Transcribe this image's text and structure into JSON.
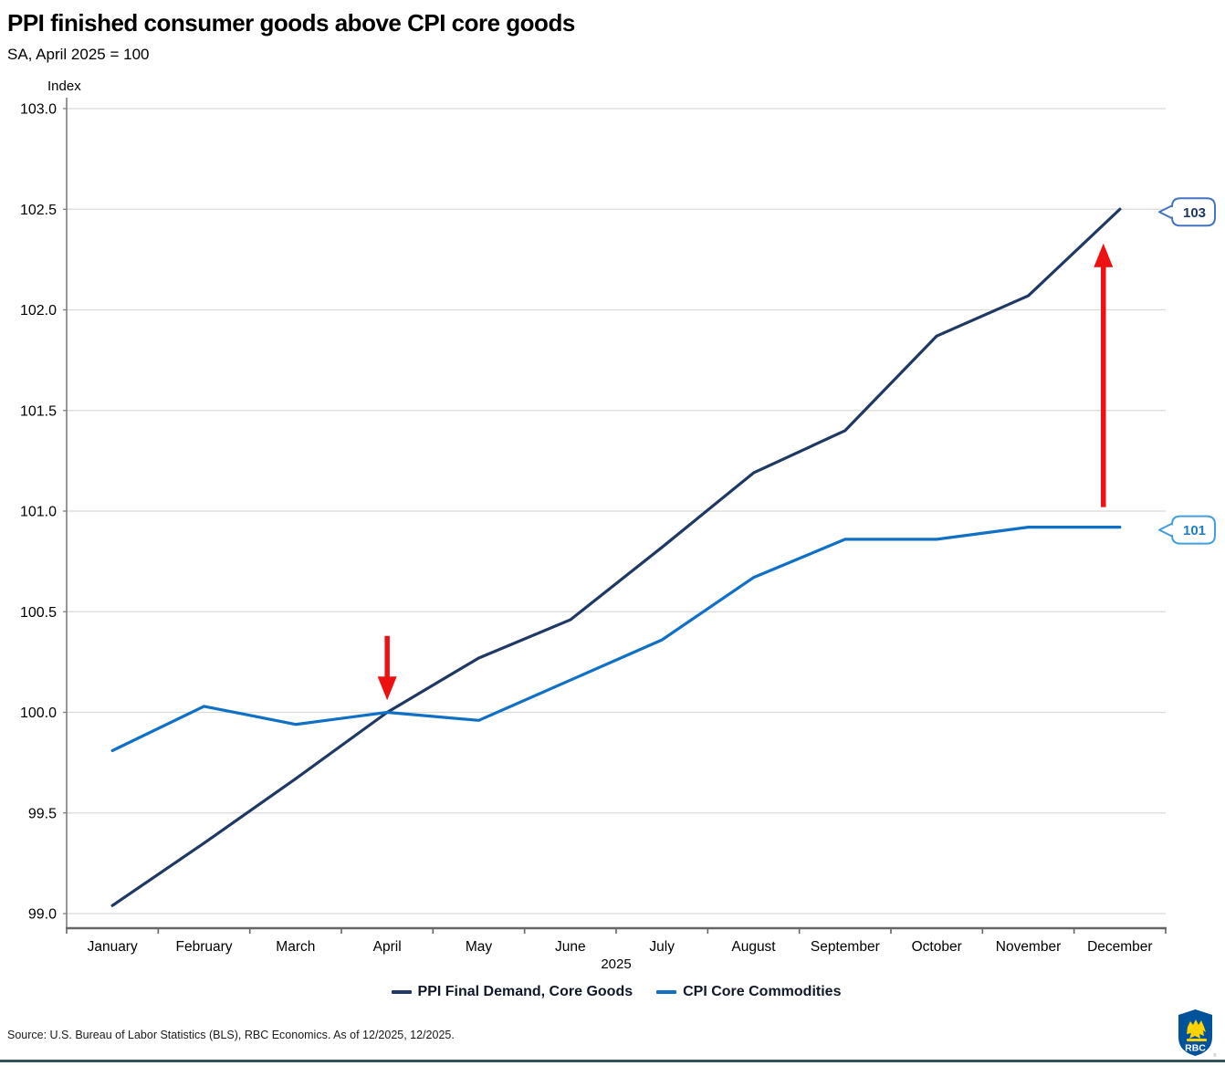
{
  "header": {
    "title": "PPI finished consumer goods above CPI core goods",
    "subtitle": "SA, April 2025 = 100"
  },
  "chart_data": {
    "type": "line",
    "title": "PPI finished consumer goods above CPI core goods",
    "subtitle": "SA, April 2025 = 100",
    "y_axis_title": "Index",
    "x_axis_title": "2025",
    "categories": [
      "January",
      "February",
      "March",
      "April",
      "May",
      "June",
      "July",
      "August",
      "September",
      "October",
      "November",
      "December"
    ],
    "series": [
      {
        "name": "PPI Final Demand, Core Goods",
        "color": "#1F3864",
        "values": [
          99.04,
          99.35,
          99.67,
          100.0,
          100.27,
          100.46,
          100.82,
          101.19,
          101.4,
          101.87,
          102.07,
          102.5
        ]
      },
      {
        "name": "CPI Core Commodities",
        "color": "#0F70C6",
        "values": [
          99.81,
          100.03,
          99.94,
          100.0,
          99.96,
          100.16,
          100.36,
          100.67,
          100.86,
          100.86,
          100.92,
          100.92
        ]
      }
    ],
    "ylim": [
      99.0,
      103.0
    ],
    "y_tick_step": 0.5,
    "y_tick_decimals": 1,
    "grid": "horizontal",
    "gridline_color": "#D9D9D9",
    "axis_color": "#7F7F7F",
    "legend_position": "bottom",
    "annotations": {
      "arrow_color": "#EE1111",
      "arrows": [
        {
          "name": "april-convergence-arrow",
          "direction": "down",
          "x_month_index": 3.0,
          "from_value": 100.38,
          "to_value": 100.06
        },
        {
          "name": "december-gap-arrow",
          "direction": "up",
          "x_month_index": 10.82,
          "from_value": 101.02,
          "to_value": 102.33
        }
      ],
      "callouts": [
        {
          "label": "103",
          "value": 102.5,
          "border_color": "#4472C4",
          "text_color": "#1F3864"
        },
        {
          "label": "101",
          "value": 100.92,
          "border_color": "#41A0DC",
          "text_color": "#1F7EC2"
        }
      ]
    }
  },
  "footer": {
    "source": "Source: U.S. Bureau of Labor Statistics (BLS), RBC Economics. As of 12/2025, 12/2025.",
    "logo_text": "RBC"
  }
}
